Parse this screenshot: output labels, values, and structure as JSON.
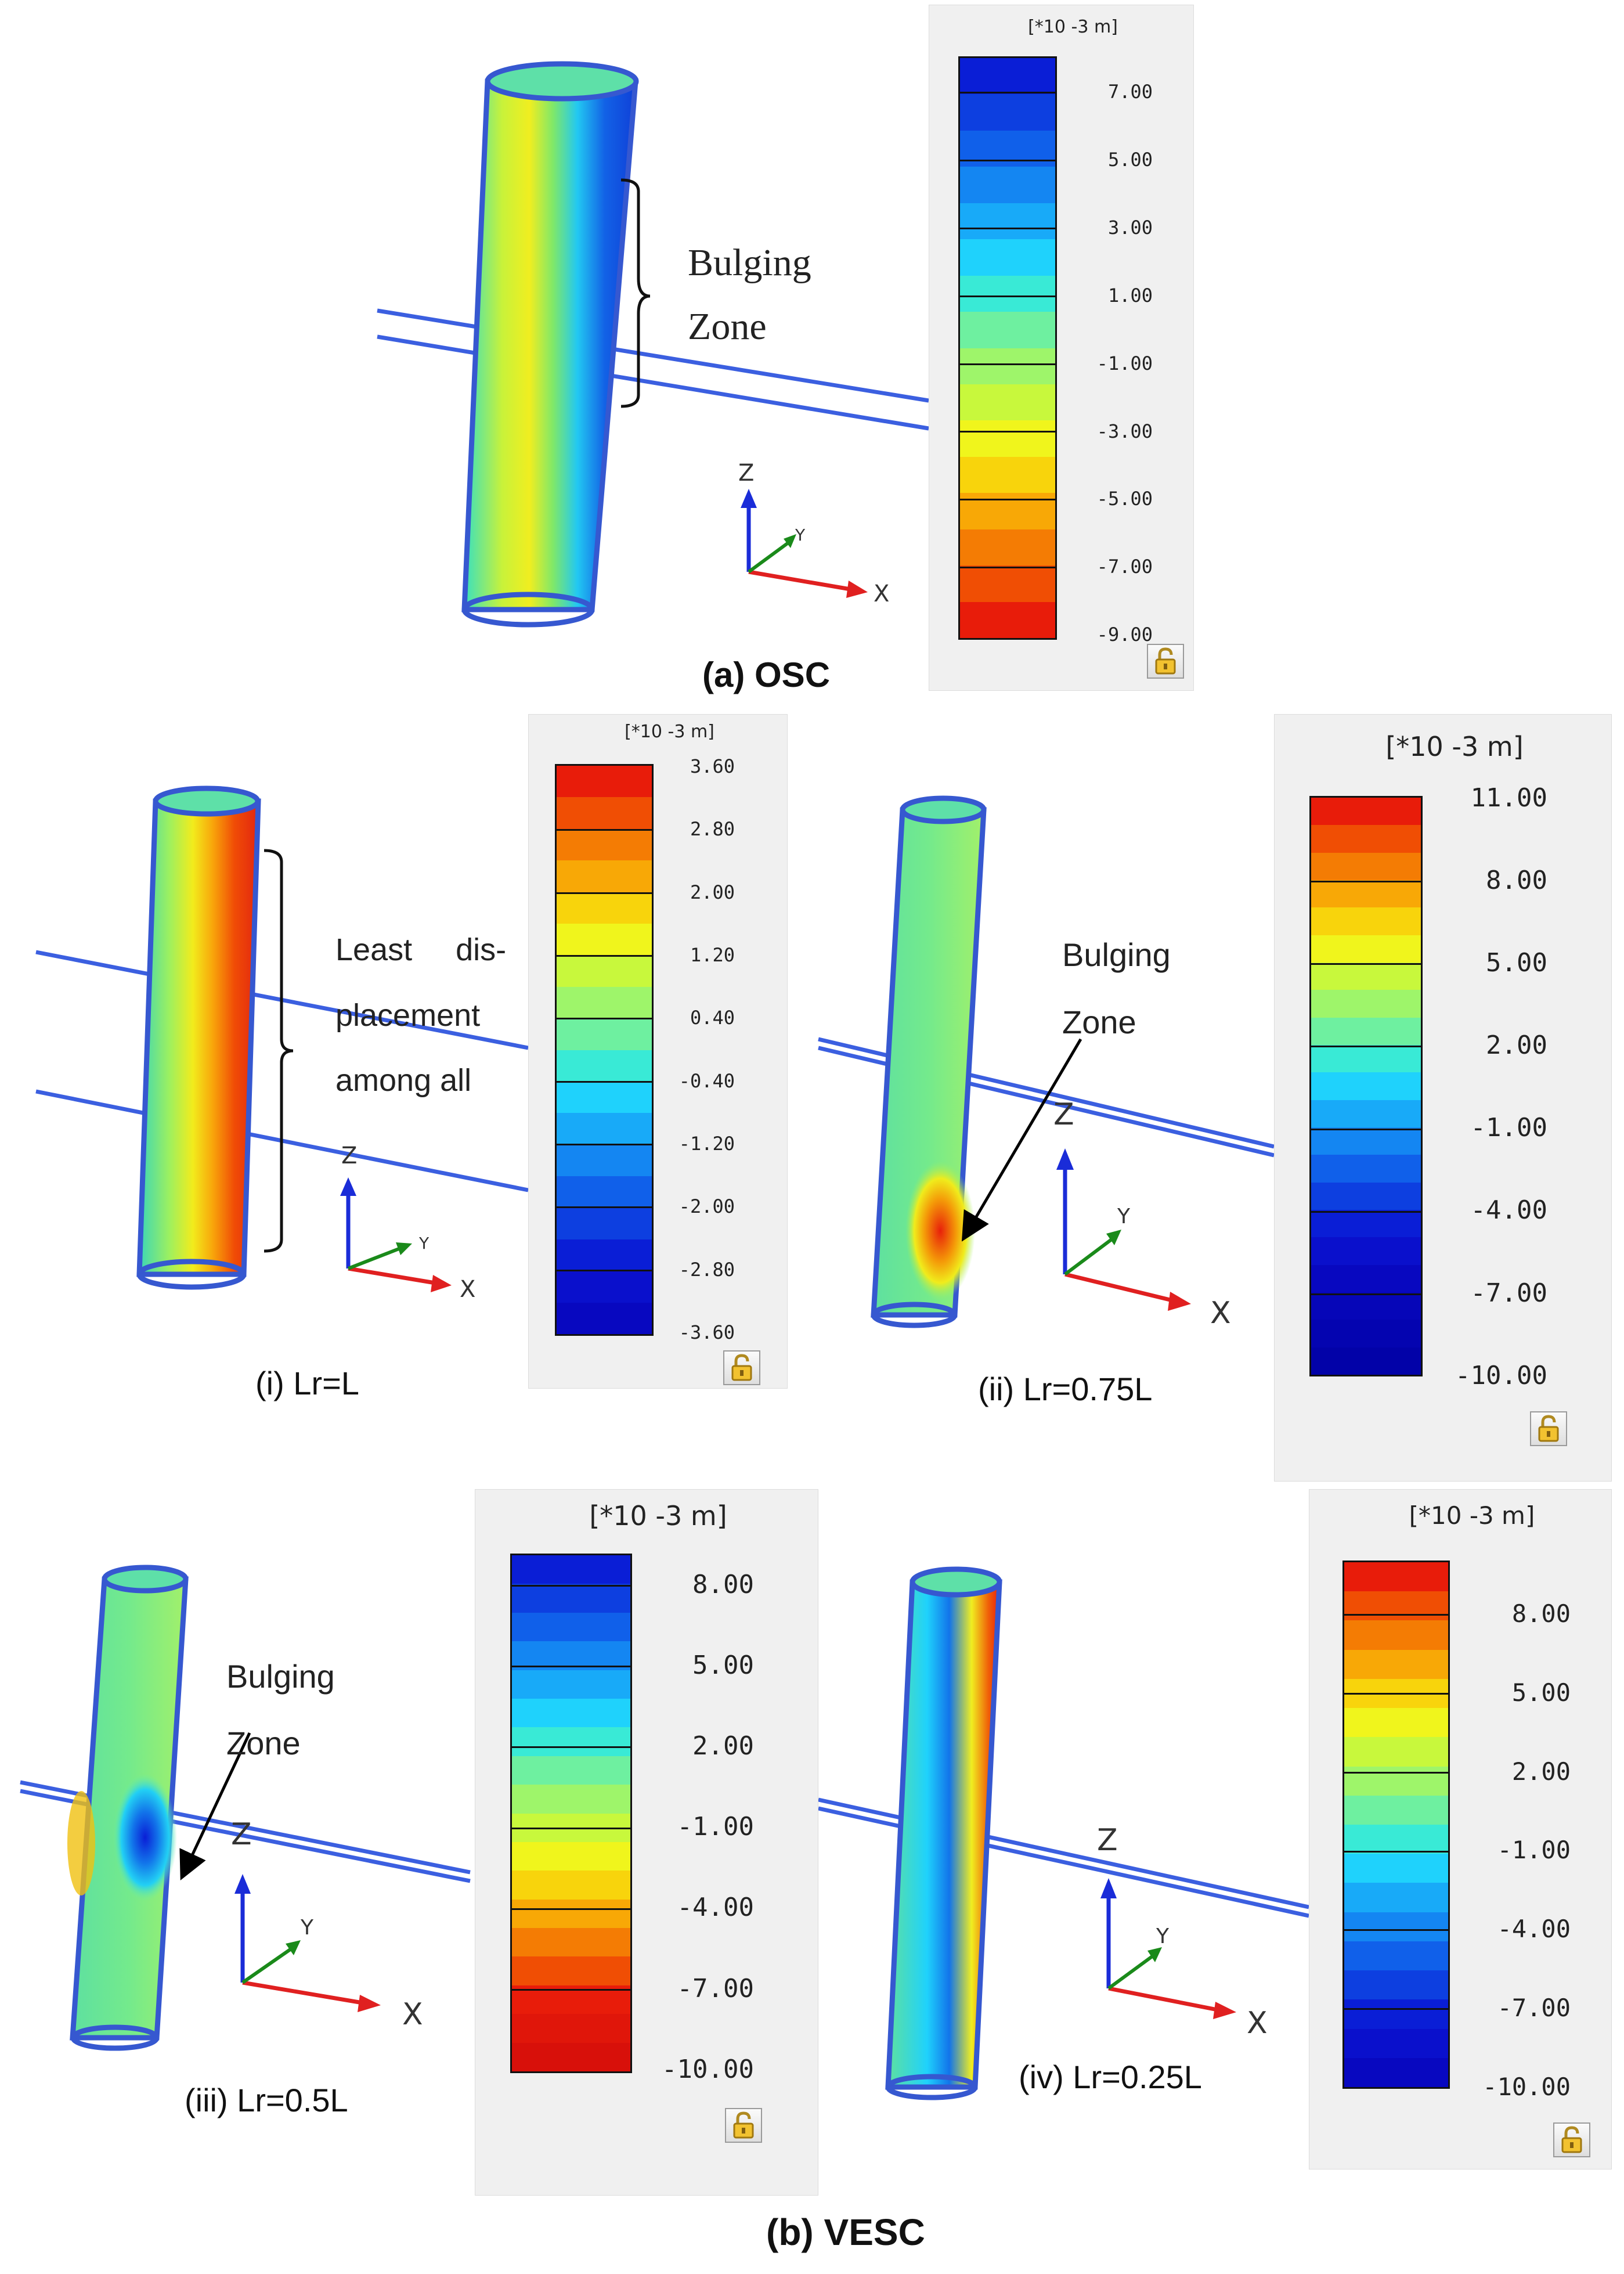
{
  "figure": {
    "panel_a": {
      "caption": "(a)  OSC",
      "annotation_line1": "Bulging",
      "annotation_line2": "Zone",
      "legend": {
        "unit": "[*10 -3 m]",
        "ticks": [
          "7.00",
          "5.00",
          "3.00",
          "1.00",
          "-1.00",
          "-3.00",
          "-5.00",
          "-7.00",
          "-9.00"
        ],
        "colors": [
          "#0a1ed6",
          "#0d3fe0",
          "#1060ea",
          "#1486f2",
          "#18aaf8",
          "#1fd2fc",
          "#39ead6",
          "#6ef0a0",
          "#9ef56a",
          "#c8f83c",
          "#f0f51c",
          "#f8d40c",
          "#f8a806",
          "#f47c04",
          "#f04e04",
          "#e81c0a"
        ]
      },
      "axes": {
        "z": "Z",
        "y": "Y",
        "x": "X"
      }
    },
    "panel_b_i": {
      "caption": "(i) Lr=L",
      "annotation_line1": "Least     dis-",
      "annotation_line2": "placement",
      "annotation_line3": "among all",
      "legend": {
        "unit": "[*10 -3 m]",
        "ticks": [
          "3.60",
          "2.80",
          "2.00",
          "1.20",
          "0.40",
          "-0.40",
          "-1.20",
          "-2.00",
          "-2.80",
          "-3.60"
        ],
        "colors": [
          "#e81c0a",
          "#f04e04",
          "#f47c04",
          "#f8a806",
          "#f8d40c",
          "#f0f51c",
          "#c8f83c",
          "#9ef56a",
          "#6ef0a0",
          "#39ead6",
          "#1fd2fc",
          "#18aaf8",
          "#1486f2",
          "#1060ea",
          "#0d3fe0",
          "#0a1ed6",
          "#0a10cc",
          "#0808c0"
        ]
      },
      "axes": {
        "z": "Z",
        "y": "Y",
        "x": "X"
      }
    },
    "panel_b_ii": {
      "caption": "(ii) Lr=0.75L",
      "annotation_line1": "Bulging",
      "annotation_line2": "Zone",
      "legend": {
        "unit": "[*10 -3 m]",
        "ticks": [
          "11.00",
          "8.00",
          "5.00",
          "2.00",
          "-1.00",
          "-4.00",
          "-7.00",
          "-10.00"
        ],
        "colors": [
          "#e81c0a",
          "#f04e04",
          "#f47c04",
          "#f8a806",
          "#f8d40c",
          "#f0f51c",
          "#c8f83c",
          "#9ef56a",
          "#6ef0a0",
          "#39ead6",
          "#1fd2fc",
          "#18aaf8",
          "#1486f2",
          "#1060ea",
          "#0d3fe0",
          "#0a1ed6",
          "#0a10cc",
          "#0808c0",
          "#0606b8",
          "#0404b0",
          "#0202a8"
        ]
      },
      "axes": {
        "z": "Z",
        "y": "Y",
        "x": "X"
      }
    },
    "panel_b_iii": {
      "caption": "(iii) Lr=0.5L",
      "annotation_line1": "Bulging",
      "annotation_line2": "Zone",
      "legend": {
        "unit": "[*10 -3 m]",
        "ticks": [
          "8.00",
          "5.00",
          "2.00",
          "-1.00",
          "-4.00",
          "-7.00",
          "-10.00"
        ],
        "colors": [
          "#0a1ed6",
          "#0d3fe0",
          "#1060ea",
          "#1486f2",
          "#18aaf8",
          "#1fd2fc",
          "#39ead6",
          "#6ef0a0",
          "#9ef56a",
          "#c8f83c",
          "#f0f51c",
          "#f8d40c",
          "#f8a806",
          "#f47c04",
          "#f04e04",
          "#e81c0a",
          "#e0160a",
          "#d8100a"
        ]
      },
      "axes": {
        "z": "Z",
        "y": "Y",
        "x": "X"
      }
    },
    "panel_b_iv": {
      "caption": "(iv) Lr=0.25L",
      "legend": {
        "unit": "[*10 -3 m]",
        "ticks": [
          "8.00",
          "5.00",
          "2.00",
          "-1.00",
          "-4.00",
          "-7.00",
          "-10.00"
        ],
        "colors": [
          "#e81c0a",
          "#f04e04",
          "#f47c04",
          "#f8a806",
          "#f8d40c",
          "#f0f51c",
          "#c8f83c",
          "#9ef56a",
          "#6ef0a0",
          "#39ead6",
          "#1fd2fc",
          "#18aaf8",
          "#1486f2",
          "#1060ea",
          "#0d3fe0",
          "#0a1ed6",
          "#0a10cc",
          "#0808c0"
        ]
      },
      "axes": {
        "z": "Z",
        "y": "Y",
        "x": "X"
      }
    },
    "panel_b_caption": "(b)  VESC"
  }
}
